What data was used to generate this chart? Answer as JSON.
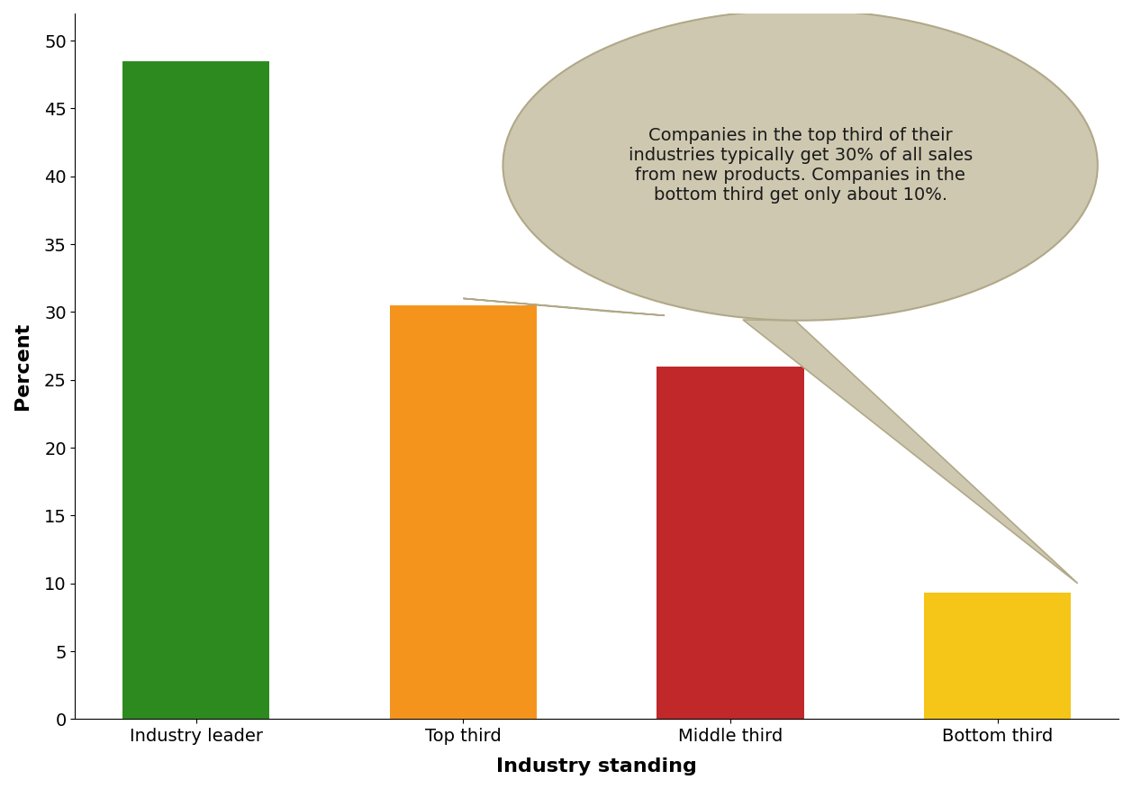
{
  "categories": [
    "Industry leader",
    "Top third",
    "Middle third",
    "Bottom third"
  ],
  "values": [
    48.5,
    30.5,
    26.0,
    9.3
  ],
  "bar_colors": [
    "#2d8a1f",
    "#f5941d",
    "#c0282a",
    "#f5c518"
  ],
  "xlabel": "Industry standing",
  "ylabel": "Percent",
  "ylim": [
    0,
    52
  ],
  "yticks": [
    0,
    5,
    10,
    15,
    20,
    25,
    30,
    35,
    40,
    45,
    50
  ],
  "annotation_text": "Companies in the top third of their\nindustries typically get 30% of all sales\nfrom new products. Companies in the\nbottom third get only about 10%.",
  "annotation_bubble_color": "#cec8b0",
  "annotation_bubble_edge": "#b0a888",
  "xlabel_fontsize": 16,
  "ylabel_fontsize": 16,
  "tick_fontsize": 14,
  "annotation_fontsize": 14,
  "background_color": "#ffffff"
}
